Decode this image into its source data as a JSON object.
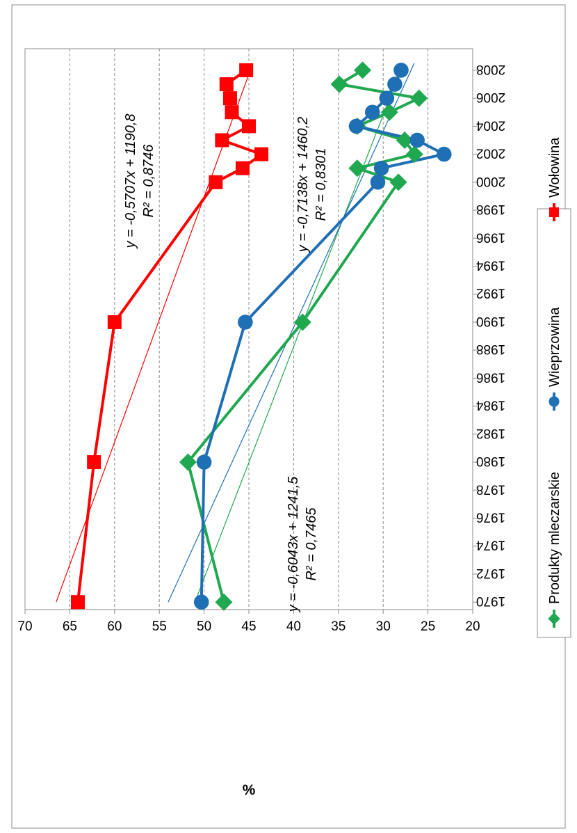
{
  "chart_data": {
    "type": "line",
    "orientation": "rotated-90-clockwise",
    "title": "",
    "xlabel": "",
    "ylabel": "%",
    "xlim": [
      1970,
      2009
    ],
    "ylim": [
      20,
      70
    ],
    "x_ticks": [
      1970,
      1972,
      1974,
      1976,
      1978,
      1980,
      1982,
      1984,
      1986,
      1988,
      1990,
      1992,
      1994,
      1996,
      1998,
      2000,
      2002,
      2004,
      2006,
      2008
    ],
    "y_ticks": [
      20,
      25,
      30,
      35,
      40,
      45,
      50,
      55,
      60,
      65,
      70
    ],
    "grid": "dashed horizontal lines at each value tick",
    "legend_position": "right",
    "series": [
      {
        "name": "Produkty mleczarskie",
        "color": "#1fa84f",
        "marker": "diamond",
        "x": [
          1970,
          1980,
          1990,
          2000,
          2001,
          2002,
          2003,
          2004,
          2005,
          2006,
          2007,
          2008
        ],
        "y": [
          47.8,
          51.8,
          39.0,
          28.3,
          32.9,
          26.5,
          27.6,
          32.9,
          29.3,
          26.0,
          34.9,
          32.3
        ],
        "trendline": {
          "slope": -0.6043,
          "intercept": 1241.5,
          "equation": "y = -0,6043x + 1241,5",
          "r2": "R² = 0,7465"
        }
      },
      {
        "name": "Wieprzowina",
        "color": "#1f6fb5",
        "marker": "circle",
        "x": [
          1970,
          1980,
          1990,
          2000,
          2001,
          2002,
          2003,
          2004,
          2005,
          2006,
          2007,
          2008
        ],
        "y": [
          50.3,
          50.0,
          45.4,
          30.6,
          30.2,
          23.2,
          26.2,
          33.0,
          31.2,
          29.6,
          28.7,
          28.0
        ],
        "trendline": {
          "slope": -0.7138,
          "intercept": 1460.2,
          "equation": "y = -0,7138x + 1460,2",
          "r2": "R² = 0,8301"
        }
      },
      {
        "name": "Wołowina",
        "color": "#ff0000",
        "marker": "square",
        "x": [
          1970,
          1980,
          1990,
          2000,
          2001,
          2002,
          2003,
          2004,
          2005,
          2006,
          2007,
          2008
        ],
        "y": [
          64.1,
          62.3,
          60.0,
          48.7,
          45.7,
          43.6,
          48.0,
          45.0,
          46.9,
          47.1,
          47.5,
          45.3
        ],
        "trendline": {
          "slope": -0.5707,
          "intercept": 1190.8,
          "equation": "y = -0,5707x + 1190,8",
          "r2": "R² = 0,8746"
        }
      }
    ]
  }
}
